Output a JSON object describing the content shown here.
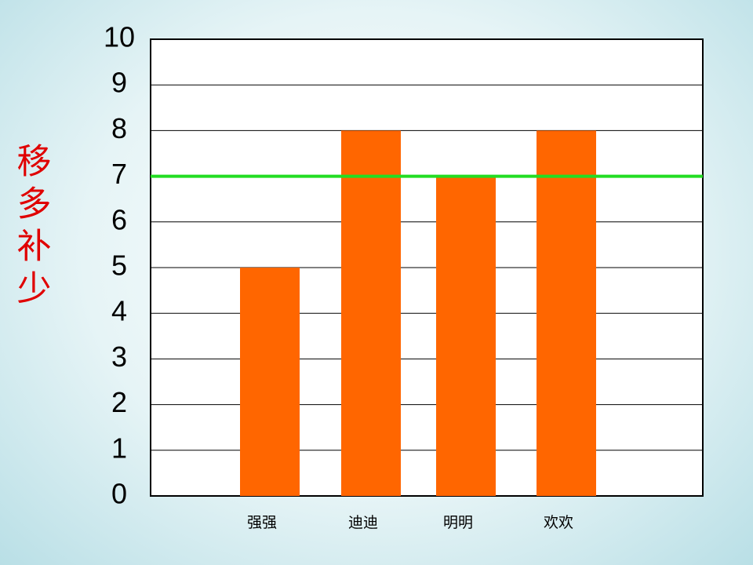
{
  "chart_data": {
    "type": "bar",
    "title": "移多补少",
    "categories": [
      "强强",
      "迪迪",
      "明明",
      "欢欢"
    ],
    "values": [
      5,
      8,
      7,
      8
    ],
    "color": "#ff6600",
    "ylim": [
      0,
      10
    ],
    "yticks": [
      0,
      1,
      2,
      3,
      4,
      5,
      6,
      7,
      8,
      9,
      10
    ],
    "grid": true,
    "reference_line": {
      "value": 7,
      "color": "#22dd22"
    }
  }
}
